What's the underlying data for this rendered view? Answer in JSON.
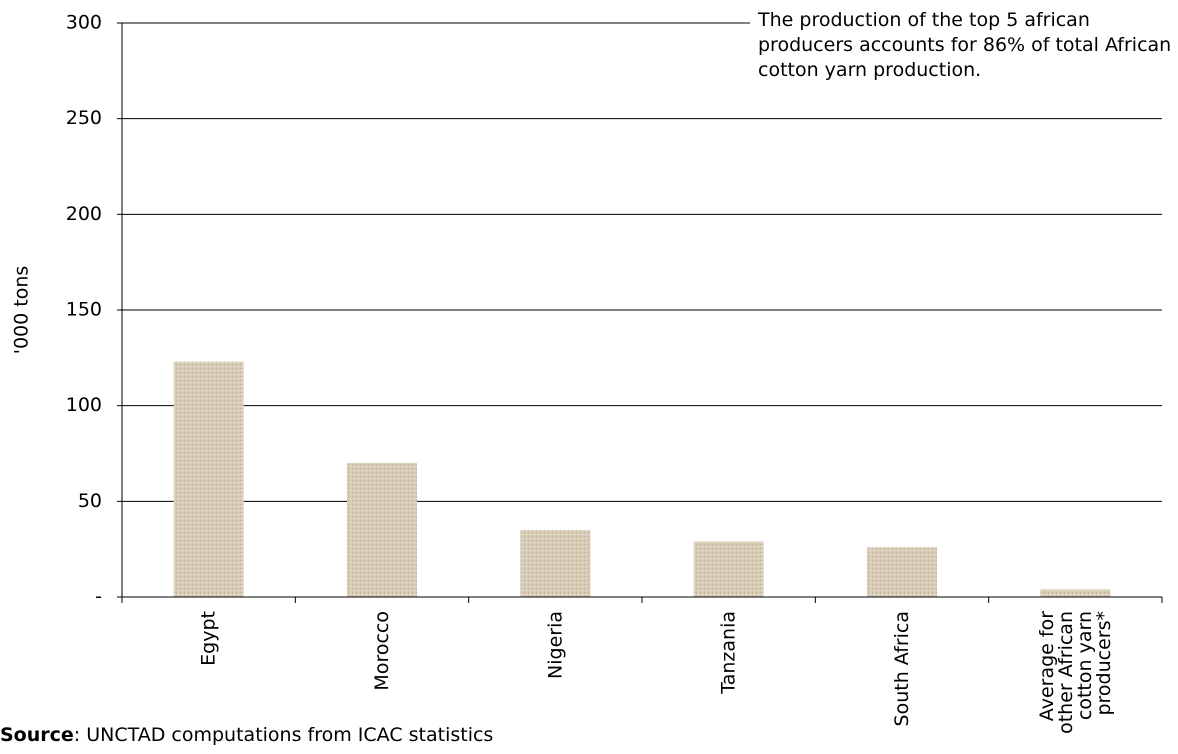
{
  "chart_data": {
    "type": "bar",
    "y_label": "'000 tons",
    "annotation": "The production of the top 5 african producers accounts for 86% of total African cotton yarn production.",
    "source": {
      "label": "Source",
      "text": ": UNCTAD computations from ICAC statistics"
    },
    "categories": [
      "Egypt",
      "Morocco",
      "Nigeria",
      "Tanzania",
      "South Africa",
      "Average for other African cotton yarn producers*"
    ],
    "values": [
      123,
      70,
      35,
      29,
      26,
      4
    ],
    "color": "#d8ccb6",
    "ylim": [
      0,
      300
    ],
    "yticks": [
      {
        "value": 0,
        "label": "-"
      },
      50,
      100,
      150,
      200,
      250,
      300
    ],
    "grid": true
  }
}
